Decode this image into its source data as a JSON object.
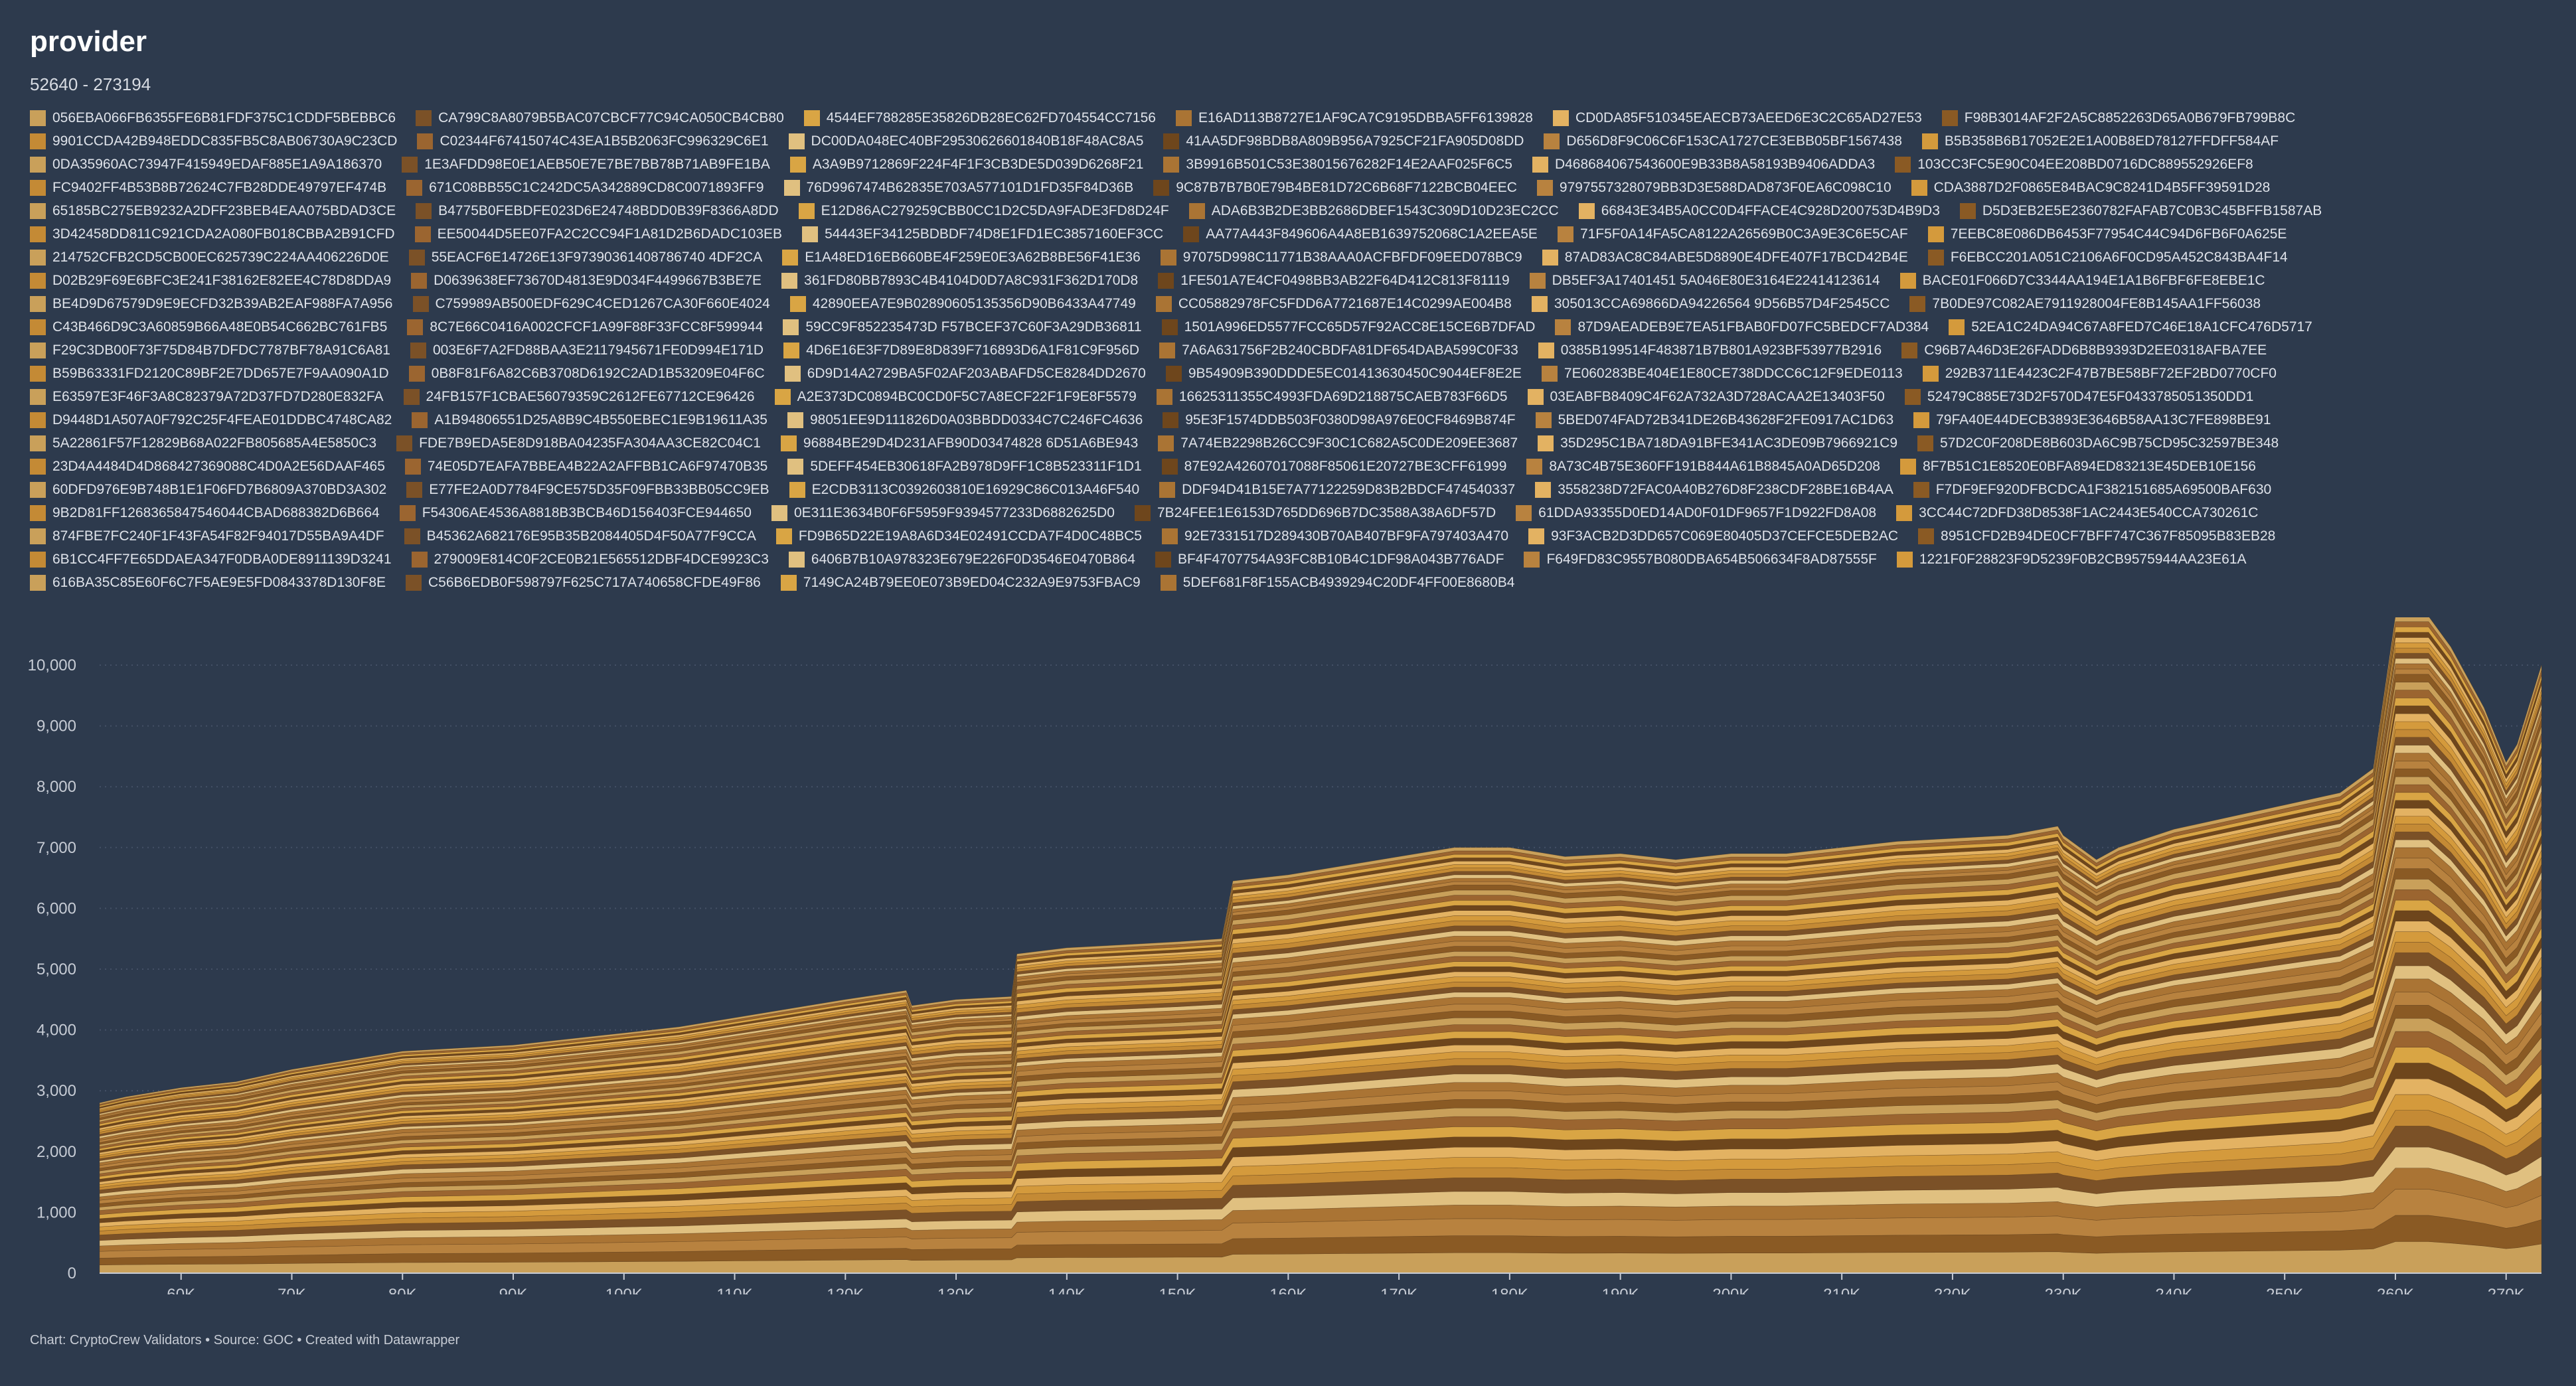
{
  "title": "provider",
  "subtitle": "52640 - 273194",
  "footer": "Chart: CryptoCrew Validators • Source: GOC • Created with Datawrapper",
  "colors": {
    "background": "#2d3a4d",
    "palette": [
      "#c9a05a",
      "#7b5127",
      "#d9a544",
      "#aa7434",
      "#e3b262",
      "#8a5a24",
      "#c48a35",
      "#9b6530",
      "#e0c080",
      "#6e461c",
      "#b8823f",
      "#d49a3c"
    ]
  },
  "legend": [
    "056EBA066FB6355FE6B81FDF375C1CDDF5BEBBC6",
    "CA799C8A8079B5BAC07CBCF77C94CA050CB4CB80",
    "4544EF788285E35826DB28EC62FD704554CC7156",
    "E16AD113B8727E1AF9CA7C9195DBBA5FF6139828",
    "CD0DA85F510345EAECB73AEED6E3C2C65AD27E53",
    "F98B3014AF2F2A5C8852263D65A0B679FB799B8C",
    "9901CCDA42B948EDDC835FB5C8AB06730A9C23CD",
    "C02344F67415074C43EA1B5B2063FC996329C6E1",
    "DC00DA048EC40BF29530626601840B18F48AC8A5",
    "41AA5DF98BDB8A809B956A7925CF21FA905D08DD",
    "D656D8F9C06C6F153CA1727CE3EBB05BF1567438",
    "B5B358B6B17052E2E1A00B8ED78127FFDFF584AF",
    "0DA35960AC73947F415949EDAF885E1A9A186370",
    "1E3AFDD98E0E1AEB50E7E7BE7BB78B71AB9FE1BA",
    "A3A9B9712869F224F4F1F3CB3DE5D039D6268F21",
    "3B9916B501C53E38015676282F14E2AAF025F6C5",
    "D468684067543600E9B33B8A58193B9406ADDA3",
    "103CC3FC5E90C04EE208BD0716DC889552926EF8",
    "FC9402FF4B53B8B72624C7FB28DDE49797EF474B",
    "671C08BB55C1C242DC5A342889CD8C0071893FF9",
    "76D9967474B62835E703A577101D1FD35F84D36B",
    "9C87B7B7B0E79B4BE81D72C6B68F7122BCB04EEC",
    "9797557328079BB3D3E588DAD873F0EA6C098C10",
    "CDA3887D2F0865E84BAC9C8241D4B5FF39591D28",
    "65185BC275EB9232A2DFF23BEB4EAA075BDAD3CE",
    "B4775B0FEBDFE023D6E24748BDD0B39F8366A8DD",
    "E12D86AC279259CBB0CC1D2C5DA9FADE3FD8D24F",
    "ADA6B3B2DE3BB2686DBEF1543C309D10D23EC2CC",
    "66843E34B5A0CC0D4FFACE4C928D200753D4B9D3",
    "D5D3EB2E5E2360782FAFAB7C0B3C45BFFB1587AB",
    "3D42458DD811C921CDA2A080FB018CBBA2B91CFD",
    "EE50044D5EE07FA2C2CC94F1A81D2B6DADC103EB",
    "54443EF34125BDBDF74D8E1FD1EC3857160EF3CC",
    "AA77A443F849606A4A8EB1639752068C1A2EEA5E",
    "71F5F0A14FA5CA8122A26569B0C3A9E3C6E5CAF",
    "7EEBC8E086DB6453F77954C44C94D6FB6F0A625E",
    "214752CFB2CD5CB00EC625739C224AA406226D0E",
    "55EACF6E14726E13F97390361408786740 4DF2CA",
    "E1A48ED16EB660BE4F259E0E3A62B8BE56F41E36",
    "97075D998C11771B38AAA0ACFBFDF09EED078BC9",
    "87AD83AC8C84ABE5D8890E4DFE407F17BCD42B4E",
    "F6EBCC201A051C2106A6F0CD95A452C843BA4F14",
    "D02B29F69E6BFC3E241F38162E82EE4C78D8DDA9",
    "D0639638EF73670D4813E9D034F4499667B3BE7E",
    "361FD80BB7893C4B4104D0D7A8C931F362D170D8",
    "1FE501A7E4CF0498BB3AB22F64D412C813F81119",
    "DB5EF3A17401451 5A046E80E3164E22414123614",
    "BACE01F066D7C3344AA194E1A1B6FBF6FE8EBE1C",
    "BE4D9D67579D9E9ECFD32B39AB2EAF988FA7A956",
    "C759989AB500EDF629C4CED1267CA30F660E4024",
    "42890EEA7E9B02890605135356D90B6433A47749",
    "CC05882978FC5FDD6A7721687E14C0299AE004B8",
    "305013CCA69866DA94226564 9D56B57D4F2545CC",
    "7B0DE97C082AE7911928004FE8B145AA1FF56038",
    "C43B466D9C3A60859B66A48E0B54C662BC761FB5",
    "8C7E66C0416A002CFCF1A99F88F33FCC8F599944",
    "59CC9F852235473D F57BCEF37C60F3A29DB36811",
    "1501A996ED5577FCC65D57F92ACC8E15CE6B7DFAD",
    "87D9AEADEB9E7EA51FBAB0FD07FC5BEDCF7AD384",
    "52EA1C24DA94C67A8FED7C46E18A1CFC476D5717",
    "F29C3DB00F73F75D84B7DFDC7787BF78A91C6A81",
    "003E6F7A2FD88BAA3E2117945671FE0D994E171D",
    "4D6E16E3F7D89E8D839F716893D6A1F81C9F956D",
    "7A6A631756F2B240CBDFA81DF654DABA599C0F33",
    "0385B199514F483871B7B801A923BF53977B2916",
    "C96B7A46D3E26FADD6B8B9393D2EE0318AFBA7EE",
    "B59B63331FD2120C89BF2E7DD657E7F9AA090A1D",
    "0B8F81F6A82C6B3708D6192C2AD1B53209E04F6C",
    "6D9D14A2729BA5F02AF203ABAFD5CE8284DD2670",
    "9B54909B390DDDE5EC01413630450C9044EF8E2E",
    "7E060283BE404E1E80CE738DDCC6C12F9EDE0113",
    "292B3711E4423C2F47B7BE58BF72EF2BD0770CF0",
    "E63597E3F46F3A8C82379A72D37FD7D280E832FA",
    "24FB157F1CBAE56079359C2612FE67712CE96426",
    "A2E373DC0894BC0CD0F5C7A8ECF22F1F9E8F5579",
    "16625311355C4993FDA69D218875CAEB783F66D5",
    "03EABFB8409C4F62A732A3D728ACAA2E13403F50",
    "52479C885E73D2F570D47E5F0433785051350DD1",
    "D9448D1A507A0F792C25F4FEAE01DDBC4748CA82",
    "A1B94806551D25A8B9C4B550EBEC1E9B19611A35",
    "98051EE9D111826D0A03BBDD0334C7C246FC4636",
    "95E3F1574DDB503F0380D98A976E0CF8469B874F",
    "5BED074FAD72B341DE26B43628F2FE0917AC1D63",
    "79FA40E44DECB3893E3646B58AA13C7FE898BE91",
    "5A22861F57F12829B68A022FB805685A4E5850C3",
    "FDE7B9EDA5E8D918BA04235FA304AA3CE82C04C1",
    "96884BE29D4D231AFB90D03474828 6D51A6BE943",
    "7A74EB2298B26CC9F30C1C682A5C0DE209EE3687",
    "35D295C1BA718DA91BFE341AC3DE09B7966921C9",
    "57D2C0F208DE8B603DA6C9B75CD95C32597BE348",
    "23D4A4484D4D868427369088C4D0A2E56DAAF465",
    "74E05D7EAFA7BBEA4B22A2AFFBB1CA6F97470B35",
    "5DEFF454EB30618FA2B978D9FF1C8B523311F1D1",
    "87E92A42607017088F85061E20727BE3CFF61999",
    "8A73C4B75E360FF191B844A61B8845A0AD65D208",
    "8F7B51C1E8520E0BFA894ED83213E45DEB10E156",
    "60DFD976E9B748B1E1F06FD7B6809A370BD3A302",
    "E77FE2A0D7784F9CE575D35F09FBB33BB05CC9EB",
    "E2CDB3113C0392603810E16929C86C013A46F540",
    "DDF94D41B15E7A77122259D83B2BDCF474540337",
    "3558238D72FAC0A40B276D8F238CDF28BE16B4AA",
    "F7DF9EF920DFBCDCA1F382151685A69500BAF630",
    "9B2D81FF1268365847546044CBAD688382D6B664",
    "F54306AE4536A8818B3BCB46D156403FCE944650",
    "0E311E3634B0F6F5959F9394577233D6882625D0",
    "7B24FEE1E6153D765DD696B7DC3588A38A6DF57D",
    "61DDA93355D0ED14AD0F01DF9657F1D922FD8A08",
    "3CC44C72DFD38D8538F1AC2443E540CCA730261C",
    "874FBE7FC240F1F43FA54F82F94017D55BA9A4DF",
    "B45362A682176E95B35B2084405D4F50A77F9CCA",
    "FD9B65D22E19A8A6D34E02491CCDA7F4D0C48BC5",
    "92E7331517D289430B70AB407BF9FA797403A470",
    "93F3ACB2D3DD657C069E80405D37CEFCE5DEB2AC",
    "8951CFD2B94DE0CF7BFF747C367F85095B83EB28",
    "6B1CC4FF7E65DDAEA347F0DBA0DE8911139D3241",
    "279009E814C0F2CE0B21E565512DBF4DCE9923C3",
    "6406B7B10A978323E679E226F0D3546E0470B864",
    "BF4F4707754A93FC8B10B4C1DF98A043B776ADF",
    "F649FD83C9557B080DBA654B506634F8AD87555F",
    "1221F0F28823F9D5239F0B2CB9575944AA23E61A",
    "616BA35C85E60F6C7F5AE9E5FD0843378D130F8E",
    "C56B6EDB0F598797F625C717A740658CFDE49F86",
    "7149CA24B79EE0E073B9ED04C232A9E9753FBAC9",
    "5DEF681F8F155ACB4939294C20DF4FF00E8680B4"
  ],
  "chart_data": {
    "type": "area",
    "stacked": true,
    "title": "provider",
    "subtitle": "52640 - 273194",
    "xlabel": "",
    "ylabel": "",
    "xlim": [
      52640,
      273194
    ],
    "ylim": [
      0,
      10000
    ],
    "grid": "horizontal",
    "y_ticks": [
      {
        "value": 0,
        "label": "0"
      },
      {
        "value": 1000,
        "label": "1,000"
      },
      {
        "value": 2000,
        "label": "2,000"
      },
      {
        "value": 3000,
        "label": "3,000"
      },
      {
        "value": 4000,
        "label": "4,000"
      },
      {
        "value": 5000,
        "label": "5,000"
      },
      {
        "value": 6000,
        "label": "6,000"
      },
      {
        "value": 7000,
        "label": "7,000"
      },
      {
        "value": 8000,
        "label": "8,000"
      },
      {
        "value": 9000,
        "label": "9,000"
      },
      {
        "value": 10000,
        "label": "10,000"
      }
    ],
    "x_ticks": [
      {
        "value": 60000,
        "label": "60K"
      },
      {
        "value": 70000,
        "label": "70K"
      },
      {
        "value": 80000,
        "label": "80K"
      },
      {
        "value": 90000,
        "label": "90K"
      },
      {
        "value": 100000,
        "label": "100K"
      },
      {
        "value": 110000,
        "label": "110K"
      },
      {
        "value": 120000,
        "label": "120K"
      },
      {
        "value": 130000,
        "label": "130K"
      },
      {
        "value": 140000,
        "label": "140K"
      },
      {
        "value": 150000,
        "label": "150K"
      },
      {
        "value": 160000,
        "label": "160K"
      },
      {
        "value": 170000,
        "label": "170K"
      },
      {
        "value": 180000,
        "label": "180K"
      },
      {
        "value": 190000,
        "label": "190K"
      },
      {
        "value": 200000,
        "label": "200K"
      },
      {
        "value": 210000,
        "label": "210K"
      },
      {
        "value": 220000,
        "label": "220K"
      },
      {
        "value": 230000,
        "label": "230K"
      },
      {
        "value": 240000,
        "label": "240K"
      },
      {
        "value": 250000,
        "label": "250K"
      },
      {
        "value": 260000,
        "label": "260K"
      },
      {
        "value": 270000,
        "label": "270K"
      }
    ],
    "total": {
      "x": [
        52640,
        55000,
        60000,
        65000,
        70000,
        75000,
        80000,
        85000,
        90000,
        95000,
        100000,
        105000,
        110000,
        115000,
        120000,
        125500,
        126000,
        130000,
        135000,
        135500,
        140000,
        145000,
        150000,
        154000,
        155000,
        160000,
        165000,
        170000,
        175000,
        180000,
        185000,
        190000,
        195000,
        200000,
        205000,
        210000,
        215000,
        220000,
        225000,
        229500,
        230000,
        233000,
        235000,
        240000,
        245000,
        250000,
        255000,
        258000,
        260000,
        263000,
        265000,
        268000,
        270000,
        271000,
        273194
      ],
      "y": [
        2800,
        2900,
        3050,
        3150,
        3350,
        3500,
        3650,
        3700,
        3750,
        3850,
        3950,
        4050,
        4200,
        4350,
        4500,
        4650,
        4400,
        4500,
        4550,
        5250,
        5350,
        5400,
        5450,
        5500,
        6450,
        6550,
        6700,
        6850,
        7000,
        7000,
        6850,
        6900,
        6800,
        6900,
        6900,
        7000,
        7100,
        7150,
        7200,
        7350,
        7200,
        6800,
        7000,
        7300,
        7500,
        7700,
        7900,
        8300,
        10800,
        10800,
        10300,
        9300,
        8400,
        8700,
        10000
      ]
    },
    "stack_bands": [
      {
        "name": "056EBA066FB6355FE6B81FDF375C1CDDF5BEBBC6",
        "share": 0.06
      },
      {
        "name": "CA799C8A8079B5BAC07CBCF77C94CA050CB4CB80",
        "share": 0.05
      },
      {
        "name": "4544EF788285E35826DB28EC62FD704554CC7156",
        "share": 0.05
      },
      {
        "name": "E16AD113B8727E1AF9CA7C9195DBBA5FF6139828",
        "share": 0.04
      },
      {
        "name": "CD0DA85F510345EAECB73AEED6E3C2C65AD27E53",
        "share": 0.04
      },
      {
        "name": "F98B3014AF2F2A5C8852263D65A0B679FB799B8C",
        "share": 0.04
      },
      {
        "name": "9901CCDA42B948EDDC835FB5C8AB06730A9C23CD",
        "share": 0.03
      },
      {
        "name": "C02344F67415074C43EA1B5B2063FC996329C6E1",
        "share": 0.03
      },
      {
        "name": "DC00DA048EC40BF29530626601840B18F48AC8A5",
        "share": 0.03
      },
      {
        "name": "41AA5DF98BDB8A809B956A7925CF21FA905D08DD",
        "share": 0.03
      },
      {
        "name": "D656D8F9C06C6F153CA1727CE3EBB05BF1567438",
        "share": 0.03
      },
      {
        "name": "B5B358B6B17052E2E1A00B8ED78127FFDFF584AF",
        "share": 0.03
      },
      {
        "name": "0DA35960AC73947F415949EDAF885E1A9A186370",
        "share": 0.025
      },
      {
        "name": "1E3AFDD98E0E1AEB50E7E7BE7BB78B71AB9FE1BA",
        "share": 0.025
      },
      {
        "name": "A3A9B9712869F224F4F1F3CB3DE5D039D6268F21",
        "share": 0.025
      },
      {
        "name": "3B9916B501C53E38015676282F14E2AAF025F6C5",
        "share": 0.025
      },
      {
        "name": "D468684067543600E9B33B8A58193B9406ADDA3",
        "share": 0.025
      },
      {
        "name": "103CC3FC5E90C04EE208BD0716DC889552926EF8",
        "share": 0.025
      },
      {
        "name": "FC9402FF4B53B8B72624C7FB28DDE49797EF474B",
        "share": 0.02
      },
      {
        "name": "671C08BB55C1C242DC5A342889CD8C0071893FF9",
        "share": 0.02
      },
      {
        "name": "76D9967474B62835E703A577101D1FD35F84D36B",
        "share": 0.02
      },
      {
        "name": "9C87B7B7B0E79B4BE81D72C6B68F7122BCB04EEC",
        "share": 0.02
      },
      {
        "name": "9797557328079BB3D3E588DAD873F0EA6C098C10",
        "share": 0.02
      },
      {
        "name": "CDA3887D2F0865E84BAC9C8241D4B5FF39591D28",
        "share": 0.02
      },
      {
        "name": "65185BC275EB9232A2DFF23BEB4EAA075BDAD3CE",
        "share": 0.02
      },
      {
        "name": "B4775B0FEBDFE023D6E24748BDD0B39F8366A8DD",
        "share": 0.02
      },
      {
        "name": "E12D86AC279259CBB0CC1D2C5DA9FADE3FD8D24F",
        "share": 0.02
      },
      {
        "name": "ADA6B3B2DE3BB2686DBEF1543C309D10D23EC2CC",
        "share": 0.02
      },
      {
        "name": "66843E34B5A0CC0D4FFACE4C928D200753D4B9D3",
        "share": 0.015
      },
      {
        "name": "D5D3EB2E5E2360782FAFAB7C0B3C45BFFB1587AB",
        "share": 0.015
      },
      {
        "name": "3D42458DD811C921CDA2A080FB018CBBA2B91CFD",
        "share": 0.015
      },
      {
        "name": "EE50044D5EE07FA2C2CC94F1A81D2B6DADC103EB",
        "share": 0.015
      },
      {
        "name": "54443EF34125BDBDF74D8E1FD1EC3857160EF3CC",
        "share": 0.015
      },
      {
        "name": "AA77A443F849606A4A8EB1639752068C1A2EEA5E",
        "share": 0.015
      },
      {
        "name": "71F5F0A14FA5CA8122A26569B0C3A9E3C6E5CAF",
        "share": 0.015
      },
      {
        "name": "7EEBC8E086DB6453F77954C44C94D6FB6F0A625E",
        "share": 0.015
      },
      {
        "name": "214752CFB2CD5CB00EC625739C224AA406226D0E",
        "share": 0.015
      },
      {
        "name": "E1A48ED16EB660BE4F259E0E3A62B8BE56F41E36",
        "share": 0.015
      },
      {
        "name": "97075D998C11771B38AAA0ACFBFDF09EED078BC9",
        "share": 0.015
      },
      {
        "name": "87AD83AC8C84ABE5D8890E4DFE407F17BCD42B4E",
        "share": 0.015
      },
      {
        "name": "F6EBCC201A051C2106A6F0CD95A452C843BA4F14",
        "share": 0.015
      },
      {
        "name": "D02B29F69E6BFC3E241F38162E82EE4C78D8DDA9",
        "share": 0.015
      },
      {
        "name": "D0639638EF73670D4813E9D034F4499667B3BE7E",
        "share": 0.015
      },
      {
        "name": "361FD80BB7893C4B4104D0D7A8C931F362D170D8",
        "share": 0.015
      },
      {
        "name": "1FE501A7E4CF0498BB3AB22F64D412C813F81119",
        "share": 0.015
      },
      {
        "name": "BACE01F066D7C3344AA194E1A1B6FBF6FE8EBE1C",
        "share": 0.015
      },
      {
        "name": "BE4D9D67579D9E9ECFD32B39AB2EAF988FA7A956",
        "share": 0.015
      },
      {
        "name": "C759989AB500EDF629C4CED1267CA30F660E4024",
        "share": 0.015
      },
      {
        "name": "42890EEA7E9B02890605135356D90B6433A47749",
        "share": 0.015
      },
      {
        "name": "CC05882978FC5FDD6A7721687E14C0299AE004B8",
        "share": 0.015
      },
      {
        "name": "7B0DE97C082AE7911928004FE8B145AA1FF56038",
        "share": 0.01
      },
      {
        "name": "C43B466D9C3A60859B66A48E0B54C662BC761FB5",
        "share": 0.01
      },
      {
        "name": "8C7E66C0416A002CFCF1A99F88F33FCC8F599944",
        "share": 0.01
      },
      {
        "name": "87D9AEADEB9E7EA51FBAB0FD07FC5BEDCF7AD384",
        "share": 0.01
      },
      {
        "name": "52EA1C24DA94C67A8FED7C46E18A1CFC476D5717",
        "share": 0.01
      },
      {
        "name": "F29C3DB00F73F75D84B7DFDC7787BF78A91C6A81",
        "share": 0.01
      },
      {
        "name": "003E6F7A2FD88BAA3E2117945671FE0D994E171D",
        "share": 0.01
      },
      {
        "name": "4D6E16E3F7D89E8D839F716893D6A1F81C9F956D",
        "share": 0.01
      },
      {
        "name": "7A6A631756F2B240CBDFA81DF654DABA599C0F33",
        "share": 0.01
      },
      {
        "name": "0385B199514F483871B7B801A923BF53977B2916",
        "share": 0.01
      },
      {
        "name": "C96B7A46D3E26FADD6B8B9393D2EE0318AFBA7EE",
        "share": 0.01
      }
    ]
  }
}
